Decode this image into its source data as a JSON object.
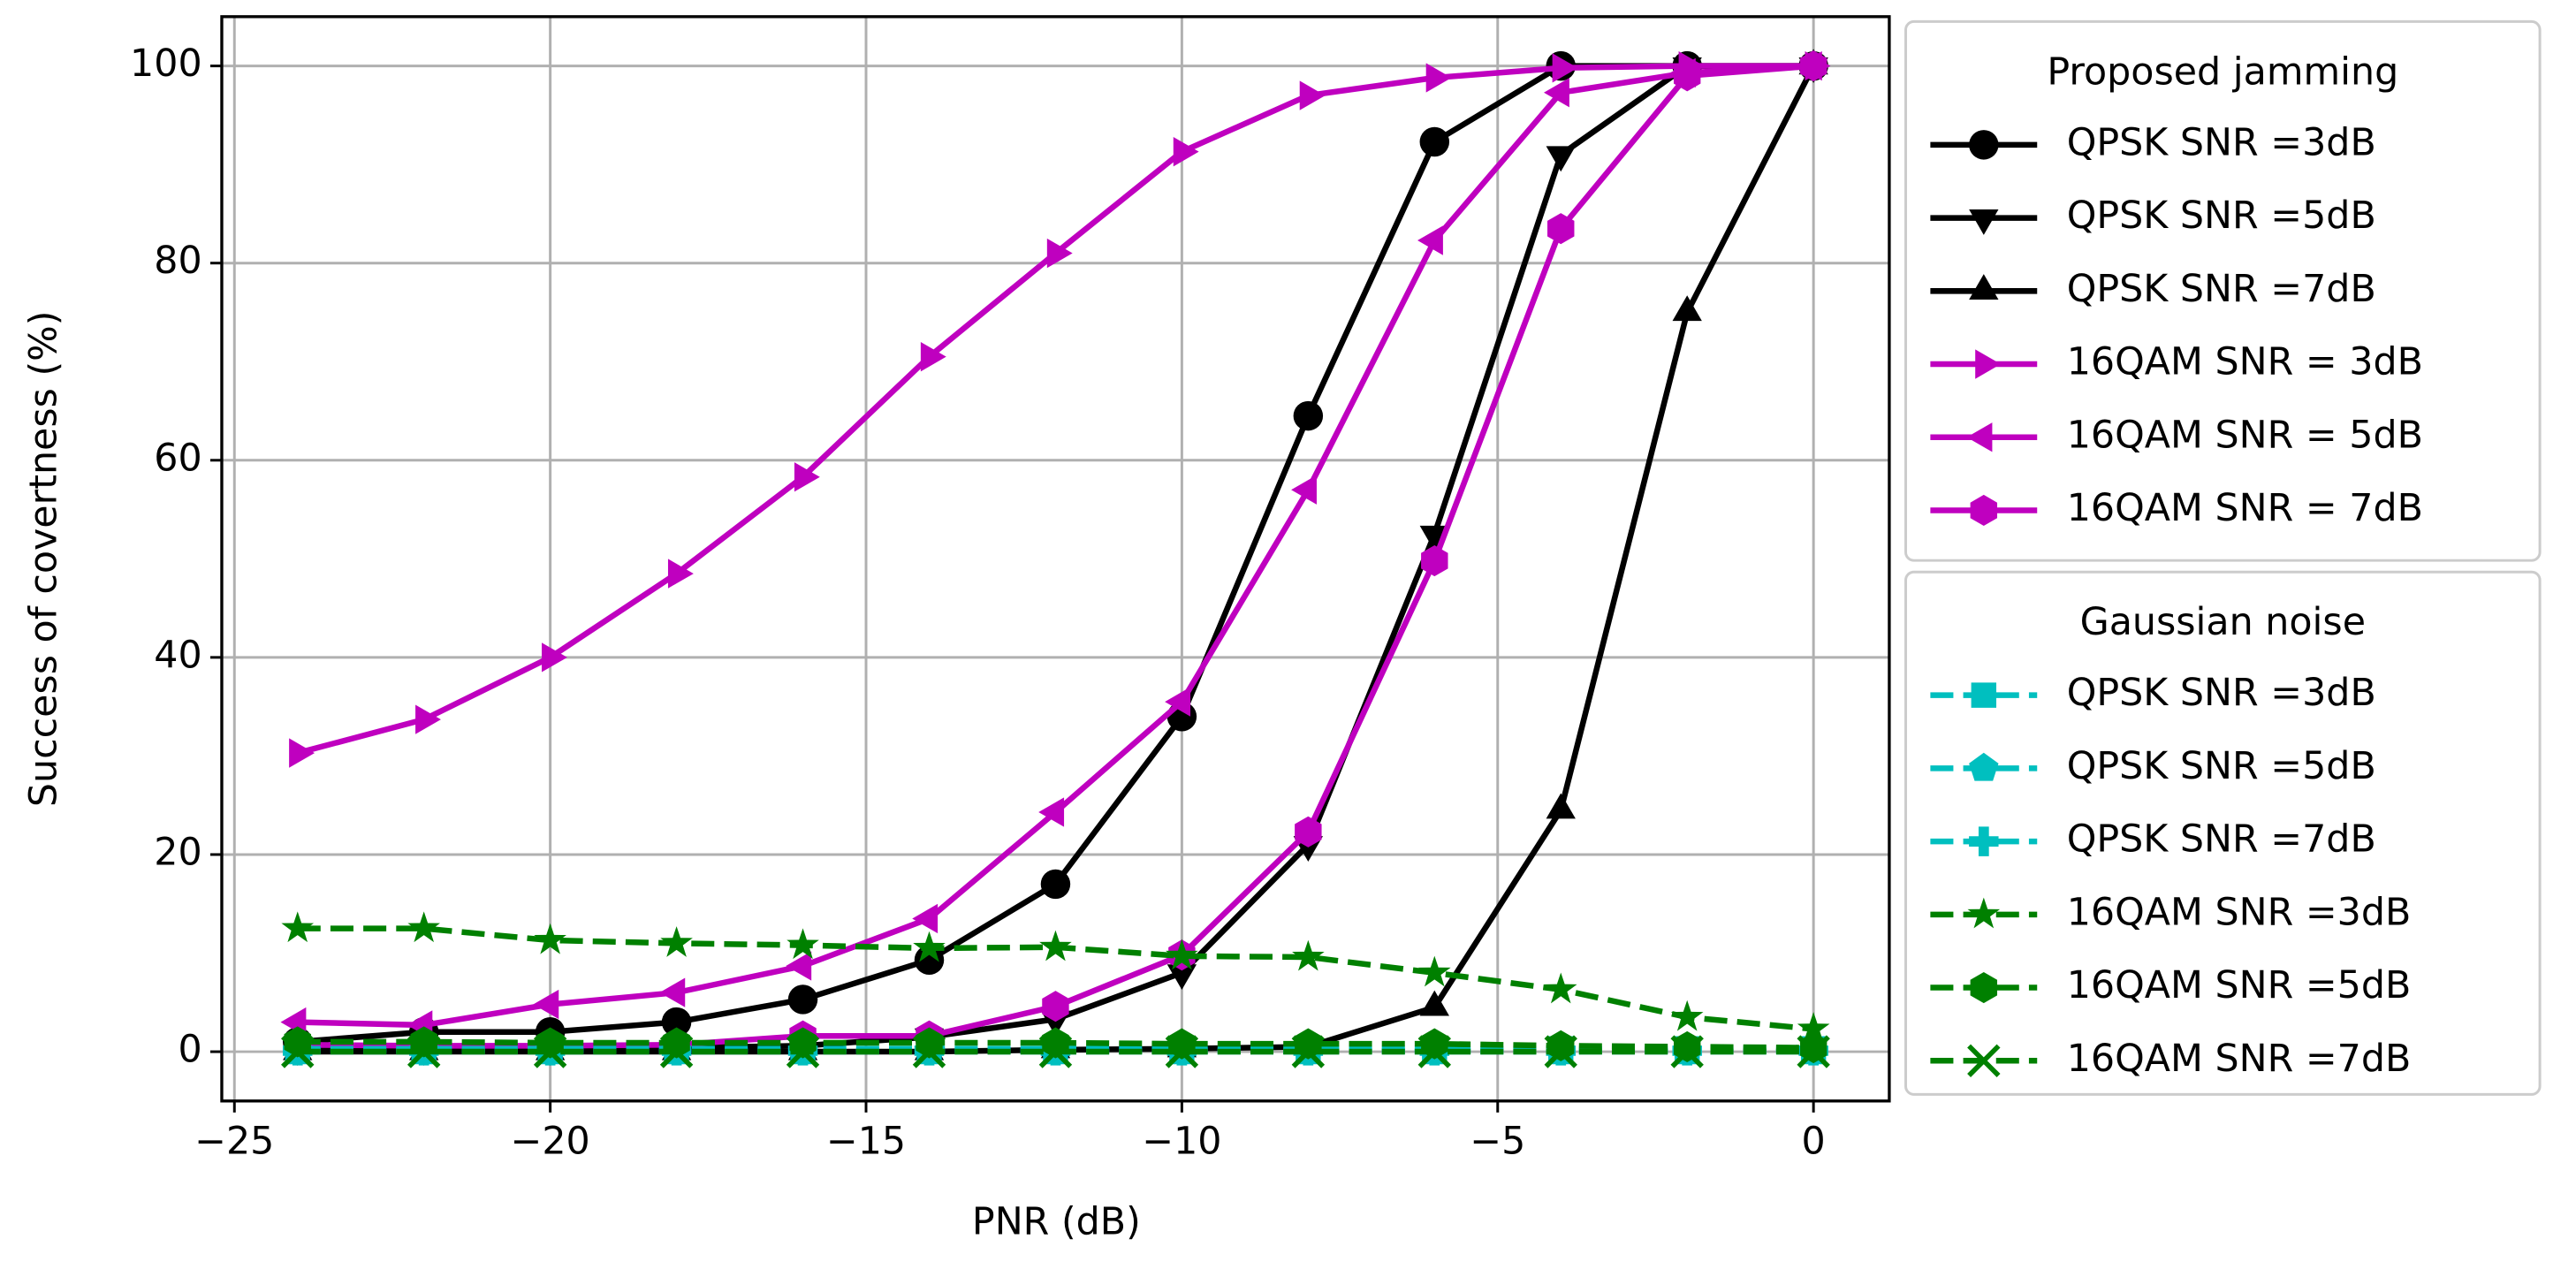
{
  "chart_data": {
    "type": "line",
    "xlabel": "PNR (dB)",
    "ylabel": "Success of covertness (%)",
    "x": [
      -24,
      -22,
      -20,
      -18,
      -16,
      -14,
      -12,
      -10,
      -8,
      -6,
      -4,
      -2,
      0
    ],
    "xlim": [
      -25.2,
      1.2
    ],
    "ylim": [
      -5,
      105
    ],
    "xticks": [
      {
        "value": -25,
        "label": "−25"
      },
      {
        "value": -20,
        "label": "−20"
      },
      {
        "value": -15,
        "label": "−15"
      },
      {
        "value": -10,
        "label": "−10"
      },
      {
        "value": -5,
        "label": "−5"
      },
      0
    ],
    "yticks": [
      0,
      20,
      40,
      60,
      80,
      100
    ],
    "grid": true,
    "series_groups": [
      {
        "title": "Proposed jamming",
        "series": [
          {
            "name": "QPSK SNR =3dB",
            "color": "#000000",
            "marker": "circle",
            "linestyle": "solid",
            "values": [
              1,
              2,
              2,
              3,
              5.3,
              9.3,
              17,
              34,
              64.5,
              92.3,
              100,
              100,
              100
            ]
          },
          {
            "name": "QPSK SNR =5dB",
            "color": "#000000",
            "marker": "triangle-down",
            "linestyle": "solid",
            "values": [
              0.3,
              0.3,
              0.3,
              0.4,
              0.6,
              1.5,
              3.3,
              8,
              21,
              52.5,
              91,
              100,
              100
            ]
          },
          {
            "name": "QPSK SNR =7dB",
            "color": "#000000",
            "marker": "triangle-up",
            "linestyle": "solid",
            "values": [
              0,
              0,
              0,
              0,
              0,
              0,
              0.2,
              0.3,
              0.5,
              4.5,
              24.5,
              75,
              100
            ]
          },
          {
            "name": "16QAM SNR = 3dB",
            "color": "#bf00bf",
            "marker": "triangle-right",
            "linestyle": "solid",
            "values": [
              30.3,
              33.7,
              40,
              48.5,
              58.3,
              70.5,
              81,
              91.3,
              97,
              98.8,
              99.8,
              100,
              100
            ]
          },
          {
            "name": "16QAM SNR = 5dB",
            "color": "#bf00bf",
            "marker": "triangle-left",
            "linestyle": "solid",
            "values": [
              3,
              2.7,
              4.8,
              6,
              8.7,
              13.5,
              24.3,
              35.5,
              57,
              82.3,
              97.3,
              99.3,
              100
            ]
          },
          {
            "name": "16QAM SNR = 7dB",
            "color": "#bf00bf",
            "marker": "hexagon",
            "linestyle": "solid",
            "values": [
              0.7,
              0.6,
              0.6,
              0.7,
              1.6,
              1.6,
              4.6,
              9.8,
              22.3,
              49.8,
              83.5,
              99,
              100
            ]
          }
        ]
      },
      {
        "title": "Gaussian noise",
        "series": [
          {
            "name": "QPSK SNR =3dB",
            "color": "#00bfbf",
            "marker": "square",
            "linestyle": "dashed",
            "values": [
              0.3,
              0.3,
              0.3,
              0.3,
              0.3,
              0.3,
              0.3,
              0.3,
              0.3,
              0.3,
              0.3,
              0.3,
              0.3
            ]
          },
          {
            "name": "QPSK SNR =5dB",
            "color": "#00bfbf",
            "marker": "pentagon",
            "linestyle": "dashed",
            "values": [
              0,
              0,
              0,
              0,
              0,
              0,
              0,
              0,
              0,
              0,
              0,
              0,
              0
            ]
          },
          {
            "name": "QPSK SNR =7dB",
            "color": "#00bfbf",
            "marker": "plus",
            "linestyle": "dashed",
            "values": [
              0.1,
              0.1,
              0.1,
              0.1,
              0.1,
              0.1,
              0.1,
              0.1,
              0.1,
              0.1,
              0.1,
              0.1,
              0.1
            ]
          },
          {
            "name": "16QAM SNR =3dB",
            "color": "#008000",
            "marker": "star",
            "linestyle": "dashed",
            "values": [
              12.5,
              12.5,
              11.3,
              11,
              10.8,
              10.5,
              10.6,
              9.7,
              9.6,
              8,
              6.3,
              3.5,
              2.3
            ]
          },
          {
            "name": "16QAM SNR =5dB",
            "color": "#008000",
            "marker": "hexagon",
            "linestyle": "dashed",
            "values": [
              1,
              1,
              0.9,
              0.9,
              0.9,
              0.9,
              0.9,
              0.8,
              0.8,
              0.8,
              0.6,
              0.5,
              0.4
            ]
          },
          {
            "name": "16QAM SNR =7dB",
            "color": "#008000",
            "marker": "x",
            "linestyle": "dashed",
            "values": [
              0,
              0,
              0,
              0,
              0,
              0,
              0,
              0,
              0,
              0,
              0,
              0,
              0
            ]
          }
        ]
      }
    ]
  }
}
